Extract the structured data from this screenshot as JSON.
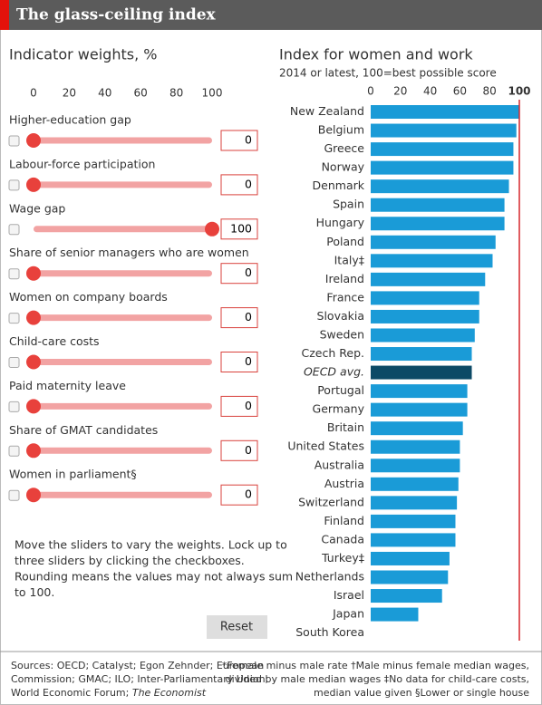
{
  "header": {
    "title": "The glass-ceiling index"
  },
  "controls": {
    "title": "Indicator weights, %",
    "ticks": [
      0,
      20,
      40,
      60,
      80,
      100
    ],
    "range": [
      0,
      100
    ],
    "sliders": [
      {
        "label": "Higher-education gap",
        "value": 0
      },
      {
        "label": "Labour-force participation",
        "value": 0
      },
      {
        "label": "Wage gap",
        "value": 100
      },
      {
        "label": "Share of senior managers who are women",
        "value": 0
      },
      {
        "label": "Women on company boards",
        "value": 0
      },
      {
        "label": "Child-care costs",
        "value": 0
      },
      {
        "label": "Paid maternity leave",
        "value": 0
      },
      {
        "label": "Share of GMAT candidates",
        "value": 0
      },
      {
        "label": "Women in parliament§",
        "value": 0
      }
    ],
    "instructions": [
      "Move the sliders to vary the weights. Lock up to",
      "three sliders by clicking the checkboxes.",
      "Rounding means the values may not always sum",
      "to 100."
    ],
    "reset": "Reset"
  },
  "chart_data": {
    "type": "barh",
    "title": "Index for women and work",
    "subtitle": "2014 or latest, 100=best possible score",
    "categories": [
      "New Zealand",
      "Belgium",
      "Greece",
      "Norway",
      "Denmark",
      "Spain",
      "Hungary",
      "Poland",
      "Italy‡",
      "Ireland",
      "France",
      "Slovakia",
      "Sweden",
      "Czech Rep.",
      "OECD avg.",
      "Portugal",
      "Germany",
      "Britain",
      "United States",
      "Australia",
      "Austria",
      "Switzerland",
      "Finland",
      "Canada",
      "Turkey‡",
      "Netherlands",
      "Israel",
      "Japan",
      "South Korea"
    ],
    "values": [
      100,
      98,
      96,
      96,
      93,
      90,
      90,
      84,
      82,
      77,
      73,
      73,
      70,
      68,
      68,
      65,
      65,
      62,
      60,
      60,
      59,
      58,
      57,
      57,
      53,
      52,
      48,
      32,
      0
    ],
    "colors": [
      "#1a9bd7",
      "#1a9bd7",
      "#1a9bd7",
      "#1a9bd7",
      "#1a9bd7",
      "#1a9bd7",
      "#1a9bd7",
      "#1a9bd7",
      "#1a9bd7",
      "#1a9bd7",
      "#1a9bd7",
      "#1a9bd7",
      "#1a9bd7",
      "#1a9bd7",
      "#0c4a66",
      "#1a9bd7",
      "#1a9bd7",
      "#1a9bd7",
      "#1a9bd7",
      "#1a9bd7",
      "#1a9bd7",
      "#1a9bd7",
      "#1a9bd7",
      "#1a9bd7",
      "#1a9bd7",
      "#1a9bd7",
      "#1a9bd7",
      "#1a9bd7",
      "#1a9bd7"
    ],
    "xlim": [
      0,
      100
    ],
    "xticks": [
      0,
      20,
      40,
      60,
      80,
      100
    ],
    "reference_line": 100,
    "reference_color": "#d6262c"
  },
  "footer": {
    "sources": [
      "Sources: OECD; Catalyst; Egon Zehnder; European",
      "Commission; GMAC; ILO; Inter-Parliamentary Union;"
    ],
    "sources_last": [
      "World Economic Forum; ",
      "The Economist"
    ],
    "notes": [
      "*Female minus male rate †Male minus female median wages,",
      "divided by male median wages ‡No data for child-care costs,",
      "median value given §Lower or single house"
    ]
  }
}
